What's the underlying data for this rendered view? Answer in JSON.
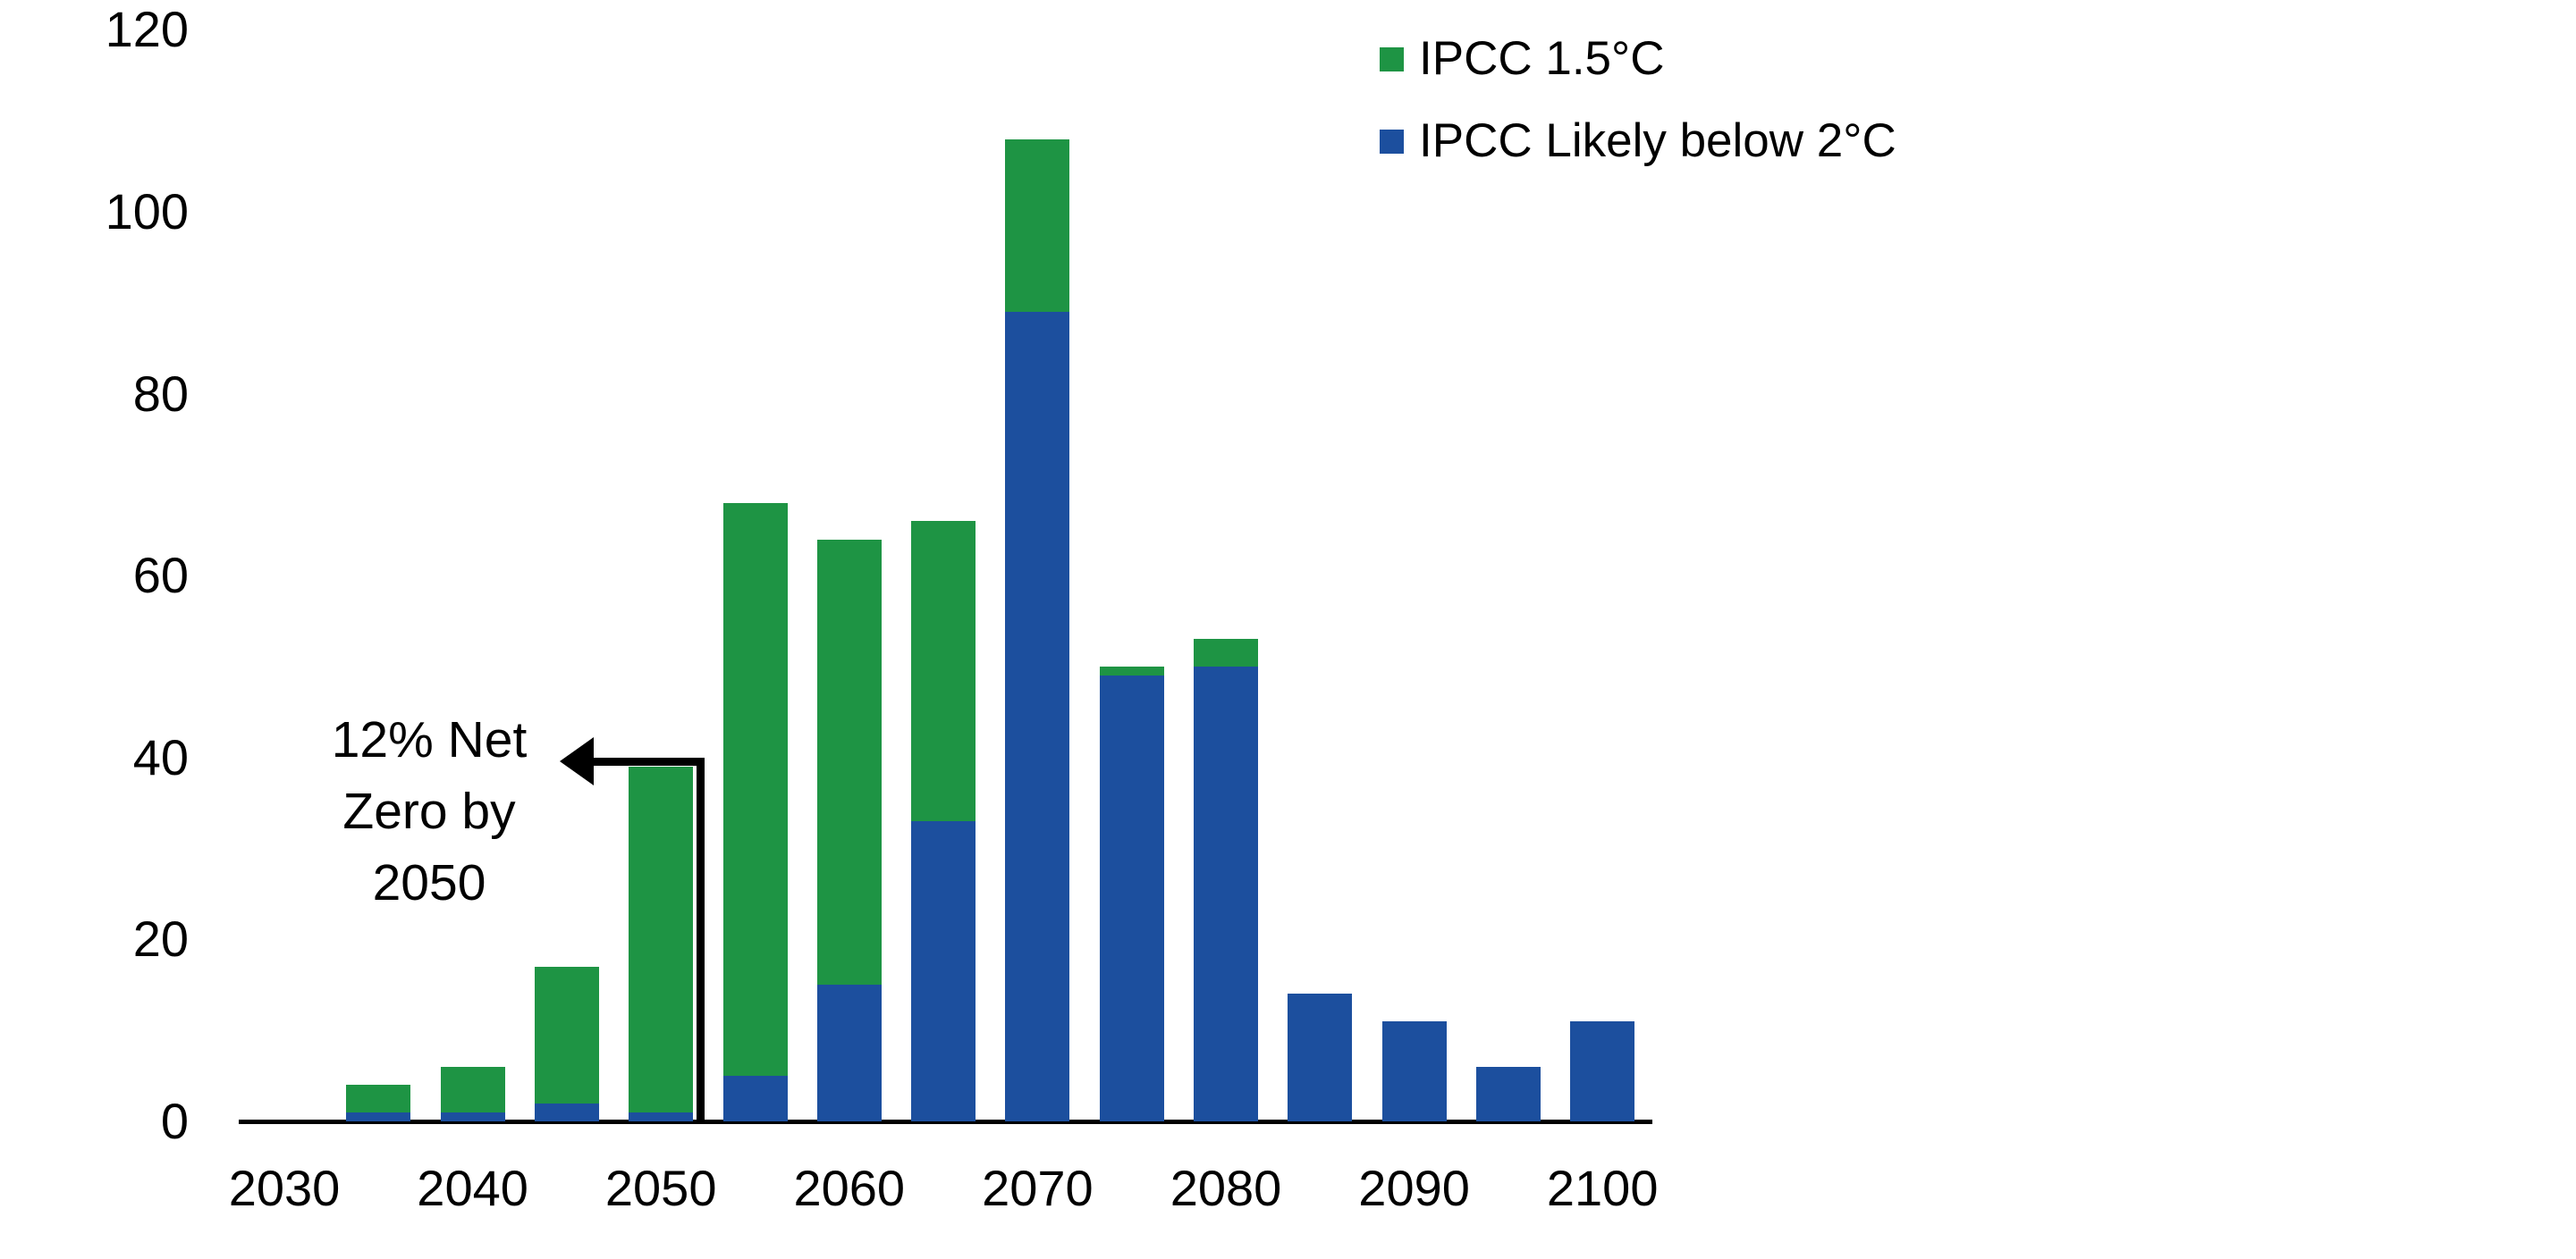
{
  "chart_data": {
    "type": "bar",
    "stacked": true,
    "title": "",
    "xlabel": "",
    "ylabel": "",
    "background": "#ffffff",
    "text_color": "#000000",
    "axis_color": "#000000",
    "grid": false,
    "x_step_years": 5,
    "x": [
      2035,
      2040,
      2045,
      2050,
      2055,
      2060,
      2065,
      2070,
      2075,
      2080,
      2085,
      2090,
      2095,
      2100
    ],
    "series": [
      {
        "name": "IPCC Likely below 2°C",
        "color": "#1c4f9e",
        "stack_order": 0,
        "values": [
          1,
          1,
          2,
          1,
          5,
          15,
          33,
          89,
          49,
          50,
          14,
          11,
          6,
          11
        ]
      },
      {
        "name": "IPCC 1.5°C",
        "color": "#1e9444",
        "stack_order": 1,
        "values": [
          3,
          5,
          15,
          38,
          63,
          49,
          33,
          19,
          1,
          3,
          0,
          0,
          0,
          0
        ]
      }
    ],
    "totals": [
      4,
      6,
      17,
      39,
      68,
      64,
      66,
      108,
      50,
      53,
      14,
      11,
      6,
      11
    ],
    "y_ticks": [
      0,
      20,
      40,
      60,
      80,
      100,
      120
    ],
    "ylim": [
      0,
      120
    ],
    "x_tick_years": [
      2030,
      2040,
      2050,
      2060,
      2070,
      2080,
      2090,
      2100
    ],
    "x_tick_labels": [
      "2030",
      "2040",
      "2050",
      "2060",
      "2070",
      "2080",
      "2090",
      "2100"
    ],
    "legend_position": "top-right",
    "legend": [
      {
        "label": "IPCC 1.5°C"
      },
      {
        "label": "IPCC Likely below 2°C"
      }
    ],
    "annotation": {
      "lines": [
        "12% Net",
        "Zero by",
        "2050"
      ],
      "points_to_year": 2050,
      "points_to_value": 40
    }
  }
}
